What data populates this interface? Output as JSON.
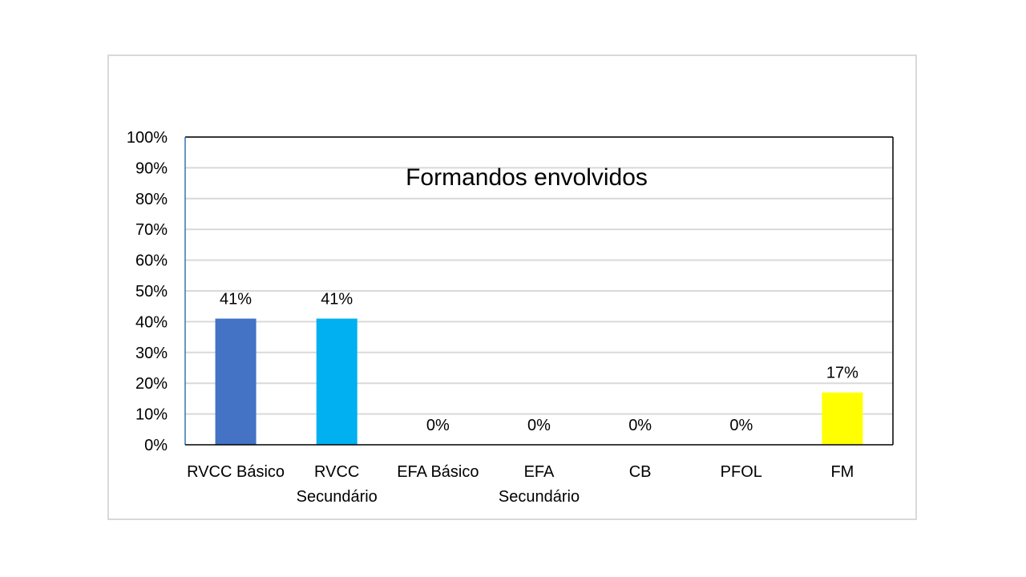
{
  "chart_data": {
    "type": "bar",
    "title": "Formandos envolvidos",
    "categories": [
      [
        "RVCC Básico"
      ],
      [
        "RVCC",
        "Secundário"
      ],
      [
        "EFA Básico"
      ],
      [
        "EFA",
        "Secundário"
      ],
      [
        "CB"
      ],
      [
        "PFOL"
      ],
      [
        "FM"
      ]
    ],
    "values": [
      41,
      41,
      0,
      0,
      0,
      0,
      17
    ],
    "value_labels": [
      "41%",
      "41%",
      "0%",
      "0%",
      "0%",
      "0%",
      "17%"
    ],
    "colors": [
      "#4472c4",
      "#00b0f0",
      "#4472c4",
      "#4472c4",
      "#4472c4",
      "#4472c4",
      "#ffff00"
    ],
    "ylim": [
      0,
      100
    ],
    "y_ticks": [
      0,
      10,
      20,
      30,
      40,
      50,
      60,
      70,
      80,
      90,
      100
    ],
    "y_tick_labels": [
      "0%",
      "10%",
      "20%",
      "30%",
      "40%",
      "50%",
      "60%",
      "70%",
      "80%",
      "90%",
      "100%"
    ],
    "grid": true,
    "gridline_color": "#d9d9d9",
    "xlabel": "",
    "ylabel": ""
  }
}
